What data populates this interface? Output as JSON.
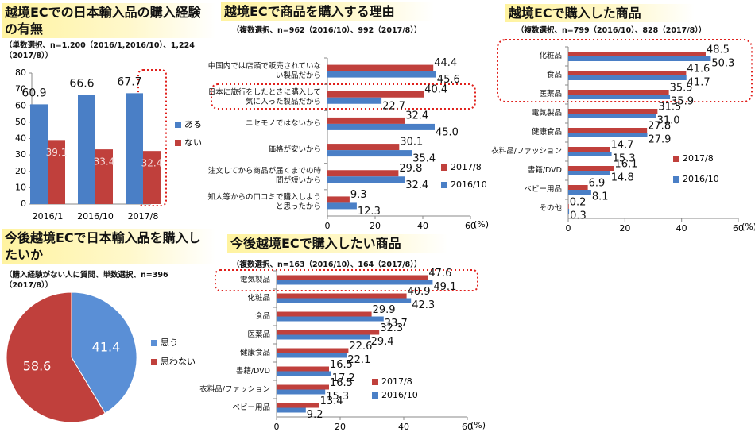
{
  "chart_data": [
    {
      "type": "bar",
      "title": "越境ECでの日本輸入品の購入経験の有無",
      "subtitle": "（単数選択、n=1,200（2016/1,2016/10）、1,224（2017/8））",
      "categories": [
        "2016/1",
        "2016/10",
        "2017/8"
      ],
      "series": [
        {
          "name": "ある",
          "color": "#4a7fc6",
          "values": [
            60.9,
            66.6,
            67.7
          ]
        },
        {
          "name": "ない",
          "color": "#c0403c",
          "values": [
            39.1,
            33.4,
            32.4
          ]
        }
      ],
      "ylim": [
        0,
        80
      ],
      "yticks": [
        0,
        10,
        20,
        30,
        40,
        50,
        60,
        70,
        80
      ],
      "legend": "right"
    },
    {
      "type": "hbar",
      "title": "越境ECで商品を購入する理由",
      "subtitle": "（複数選択、n=962（2016/10）、992（2017/8））",
      "categories": [
        "中国内では店頭で販売されていない製品だから",
        "日本に旅行をしたときに購入して気に入った製品だから",
        "ニセモノではないから",
        "価格が安いから",
        "注文してから商品が届くまでの時間が短いから",
        "知人等からの口コミで購入しようと思ったから"
      ],
      "series": [
        {
          "name": "2017/8",
          "color": "#c0403c",
          "values": [
            44.4,
            40.4,
            32.4,
            30.1,
            29.8,
            9.3
          ]
        },
        {
          "name": "2016/10",
          "color": "#4a7fc6",
          "values": [
            45.6,
            22.7,
            45.0,
            35.4,
            32.4,
            12.3
          ],
          "value_labels": [
            "45.6",
            "22.7",
            "45.0",
            "35.4",
            "32.4",
            "12.3"
          ]
        }
      ],
      "xlim": [
        0,
        60
      ],
      "xticks": [
        0,
        20,
        40,
        60
      ],
      "xlabel": "(%)",
      "legend": "right"
    },
    {
      "type": "hbar",
      "title": "越境ECで購入した商品",
      "subtitle": "（複数選択、n=799（2016/10）、828（2017/8））",
      "categories": [
        "化粧品",
        "食品",
        "医薬品",
        "電気製品",
        "健康食品",
        "衣料品/ファッション",
        "書籍/DVD",
        "ベビー用品",
        "その他"
      ],
      "series": [
        {
          "name": "2017/8",
          "color": "#c0403c",
          "values": [
            48.5,
            41.6,
            35.5,
            31.5,
            27.8,
            14.7,
            16.1,
            6.9,
            0.2
          ]
        },
        {
          "name": "2016/10",
          "color": "#4a7fc6",
          "values": [
            50.3,
            41.7,
            35.9,
            31.0,
            27.9,
            15.3,
            14.8,
            8.1,
            0.3
          ],
          "value_labels": [
            "50.3",
            "41.7",
            "35.9",
            "31.0",
            "27.9",
            "15.3",
            "14.8",
            "8.1",
            "0.3"
          ]
        }
      ],
      "xlim": [
        0,
        60
      ],
      "xticks": [
        0,
        20,
        40,
        60
      ],
      "xlabel": "(%)",
      "legend": "right"
    },
    {
      "type": "pie",
      "title": "今後越境ECで日本輸入品を購入したいか",
      "subtitle": "（購入経験がない人に質問、単数選択、n=396（2017/8））",
      "categories": [
        "思う",
        "思わない"
      ],
      "values": [
        41.4,
        58.6
      ],
      "colors": [
        "#5a8fd6",
        "#c0403c"
      ],
      "legend": "right"
    },
    {
      "type": "hbar",
      "title": "今後越境ECで購入したい商品",
      "subtitle": "（複数選択、n=163（2016/10）、164（2017/8））",
      "categories": [
        "電気製品",
        "化粧品",
        "食品",
        "医薬品",
        "健康食品",
        "書籍/DVD",
        "衣料品/ファッション",
        "ベビー用品"
      ],
      "series": [
        {
          "name": "2017/8",
          "color": "#c0403c",
          "values": [
            47.6,
            40.9,
            29.9,
            32.3,
            22.6,
            16.5,
            16.5,
            13.4
          ]
        },
        {
          "name": "2016/10",
          "color": "#4a7fc6",
          "values": [
            49.1,
            42.3,
            33.7,
            29.4,
            22.1,
            17.2,
            15.3,
            9.2
          ]
        }
      ],
      "xlim": [
        0,
        60
      ],
      "xticks": [
        0,
        20,
        40,
        60
      ],
      "xlabel": "(%)",
      "legend": "right"
    }
  ]
}
